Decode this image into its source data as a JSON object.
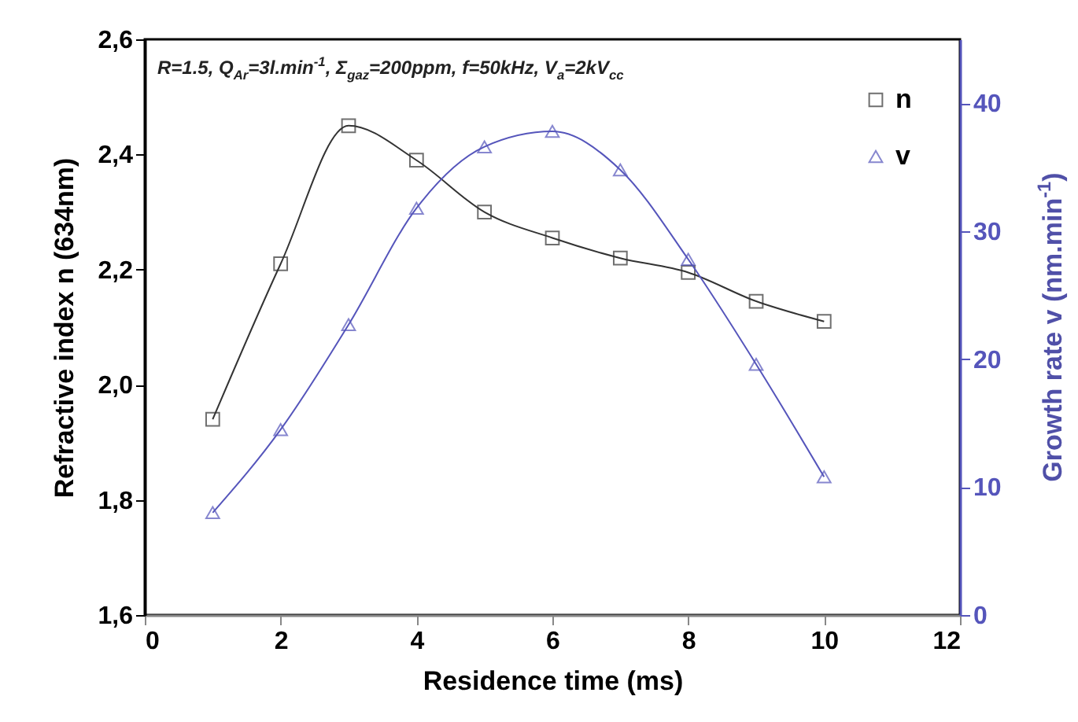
{
  "chart_data": {
    "type": "line",
    "xlabel": "Residence time (ms)",
    "ylabel": "Refractive index n (634nm)",
    "y2label": "Growth rate v (nm.min$^{-1}$)",
    "annotations": [
      "R=1.5, Q$_{Ar}$=3l.min$^{-1}$,  Σ$_{gaz}$=200ppm, f=50kHz, V$_{a}$=2kV$_{cc}$"
    ],
    "x": [
      1,
      2,
      3,
      4,
      5,
      6,
      7,
      8,
      9,
      10
    ],
    "series": [
      {
        "name": "n",
        "color": "#333333",
        "marker": "square",
        "values": [
          1.94,
          2.21,
          2.45,
          2.39,
          2.3,
          2.255,
          2.22,
          2.195,
          2.145,
          2.11
        ]
      },
      {
        "name": "v",
        "color": "#5555bb",
        "marker": "triangle",
        "axis": "y2",
        "values": [
          8,
          14.5,
          22.7,
          31.8,
          36.6,
          37.8,
          34.8,
          27.8,
          19.6,
          10.8
        ]
      }
    ],
    "xlim": [
      0,
      12
    ],
    "xticks": [
      0,
      2,
      4,
      6,
      8,
      10,
      12
    ],
    "ylim": [
      1.6,
      2.6
    ],
    "yticks": [
      {
        "value": 1.6,
        "label": "1,6"
      },
      {
        "value": 1.8,
        "label": "1,8"
      },
      {
        "value": 2.0,
        "label": "2,0"
      },
      {
        "value": 2.2,
        "label": "2,2"
      },
      {
        "value": 2.4,
        "label": "2,4"
      },
      {
        "value": 2.6,
        "label": "2,6"
      }
    ],
    "y2lim": [
      0,
      45
    ],
    "y2ticks": [
      0,
      10,
      20,
      30,
      40
    ],
    "grid": false,
    "legend": "top right",
    "line_style": "solid"
  }
}
